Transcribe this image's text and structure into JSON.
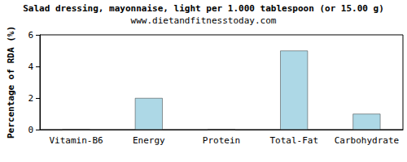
{
  "chart_data": {
    "type": "bar",
    "title": "Salad dressing, mayonnaise, light per 1.000 tablespoon (or 15.00 g)",
    "subtitle": "www.dietandfitnesstoday.com",
    "ylabel": "Percentage of RDA (%)",
    "categories": [
      "Vitamin-B6",
      "Energy",
      "Protein",
      "Total-Fat",
      "Carbohydrate"
    ],
    "values": [
      0,
      2,
      0,
      5,
      1
    ],
    "color": "#add8e6",
    "ylim": [
      0,
      6
    ],
    "yticks": [
      0,
      2,
      4,
      6
    ],
    "grid": false
  }
}
